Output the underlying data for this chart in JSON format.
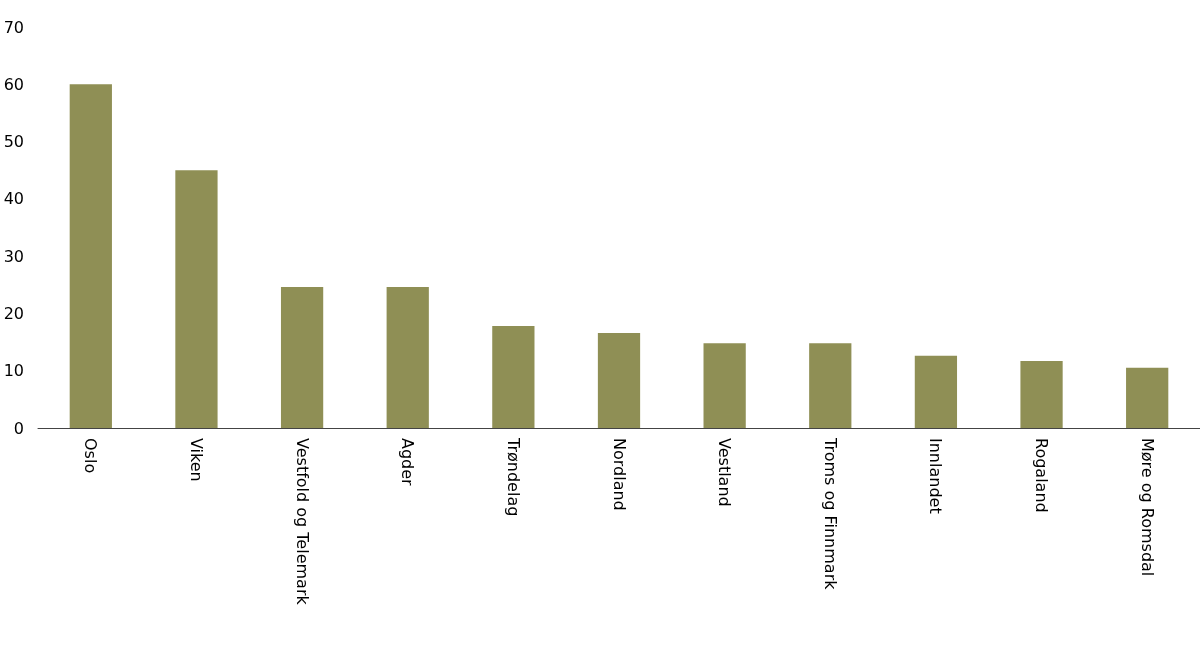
{
  "chart_data": {
    "type": "bar",
    "categories": [
      "Oslo",
      "Viken",
      "Vestfold og Telemark",
      "Agder",
      "Trøndelag",
      "Nordland",
      "Vestland",
      "Troms og Finnmark",
      "Innlandet",
      "Rogaland",
      "Møre og Romsdal"
    ],
    "values": [
      60,
      45,
      24.6,
      24.6,
      17.8,
      16.6,
      14.8,
      14.8,
      12.6,
      11.7,
      10.5
    ],
    "color": "#8f8f55",
    "ylim": [
      0,
      70
    ],
    "yticks": [
      0,
      10,
      20,
      30,
      40,
      50,
      60,
      70
    ],
    "grid": false
  }
}
